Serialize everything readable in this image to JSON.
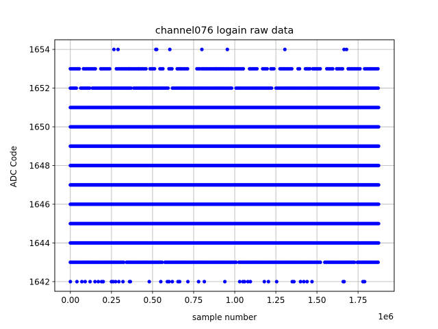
{
  "chart_data": {
    "type": "scatter",
    "title": "channel076 logain raw data",
    "xlabel": "sample number",
    "ylabel": "ADC Code",
    "x_offset_text": "1e6",
    "xlim": [
      -95000,
      1970000
    ],
    "ylim": [
      1641.5,
      1654.5
    ],
    "x_ticks": [
      0,
      250000,
      500000,
      750000,
      1000000,
      1250000,
      1500000,
      1750000
    ],
    "x_tick_labels": [
      "0.00",
      "0.25",
      "0.50",
      "0.75",
      "1.00",
      "1.25",
      "1.50",
      "1.75"
    ],
    "y_ticks": [
      1642,
      1644,
      1646,
      1648,
      1650,
      1652,
      1654
    ],
    "y_tick_labels": [
      "1642",
      "1644",
      "1646",
      "1648",
      "1650",
      "1652",
      "1654"
    ],
    "grid": true,
    "marker_color": "#0000ff",
    "x_max": 1875000,
    "dense_levels": [
      1644,
      1645,
      1646,
      1647,
      1648,
      1649,
      1650,
      1651
    ],
    "level_1652": {
      "y": 1652,
      "gaps": [
        [
          40000,
          55000
        ],
        [
          118000,
          130000
        ],
        [
          370000,
          385000
        ],
        [
          600000,
          612000
        ],
        [
          990000,
          1005000
        ],
        [
          1230000,
          1242000
        ]
      ]
    },
    "level_1643": {
      "y": 1643,
      "gaps": [
        [
          10000,
          15000
        ],
        [
          330000,
          340000
        ],
        [
          565000,
          575000
        ],
        [
          1010000,
          1020000
        ],
        [
          1530000,
          1545000
        ],
        [
          1730000,
          1740000
        ]
      ]
    },
    "level_1653": {
      "y": 1653,
      "segments": [
        [
          0,
          60000
        ],
        [
          80000,
          160000
        ],
        [
          185000,
          240000
        ],
        [
          280000,
          460000
        ],
        [
          485000,
          520000
        ],
        [
          545000,
          570000
        ],
        [
          600000,
          620000
        ],
        [
          650000,
          720000
        ],
        [
          770000,
          790000
        ],
        [
          800000,
          1060000
        ],
        [
          1090000,
          1140000
        ],
        [
          1170000,
          1200000
        ],
        [
          1220000,
          1240000
        ],
        [
          1275000,
          1350000
        ],
        [
          1385000,
          1400000
        ],
        [
          1430000,
          1460000
        ],
        [
          1475000,
          1520000
        ],
        [
          1560000,
          1600000
        ],
        [
          1620000,
          1660000
        ],
        [
          1690000,
          1770000
        ],
        [
          1790000,
          1875000
        ]
      ]
    },
    "points_1654": [
      265000,
      290000,
      520000,
      525000,
      605000,
      800000,
      955000,
      1305000,
      1665000,
      1680000
    ],
    "points_1642": [
      0,
      40000,
      70000,
      90000,
      120000,
      150000,
      170000,
      190000,
      200000,
      250000,
      260000,
      275000,
      295000,
      320000,
      360000,
      365000,
      480000,
      550000,
      590000,
      600000,
      620000,
      655000,
      665000,
      715000,
      780000,
      815000,
      940000,
      1030000,
      1050000,
      1060000,
      1080000,
      1095000,
      1180000,
      1205000,
      1255000,
      1350000,
      1360000,
      1400000,
      1420000,
      1440000,
      1470000,
      1660000,
      1665000,
      1780000,
      1790000
    ]
  }
}
